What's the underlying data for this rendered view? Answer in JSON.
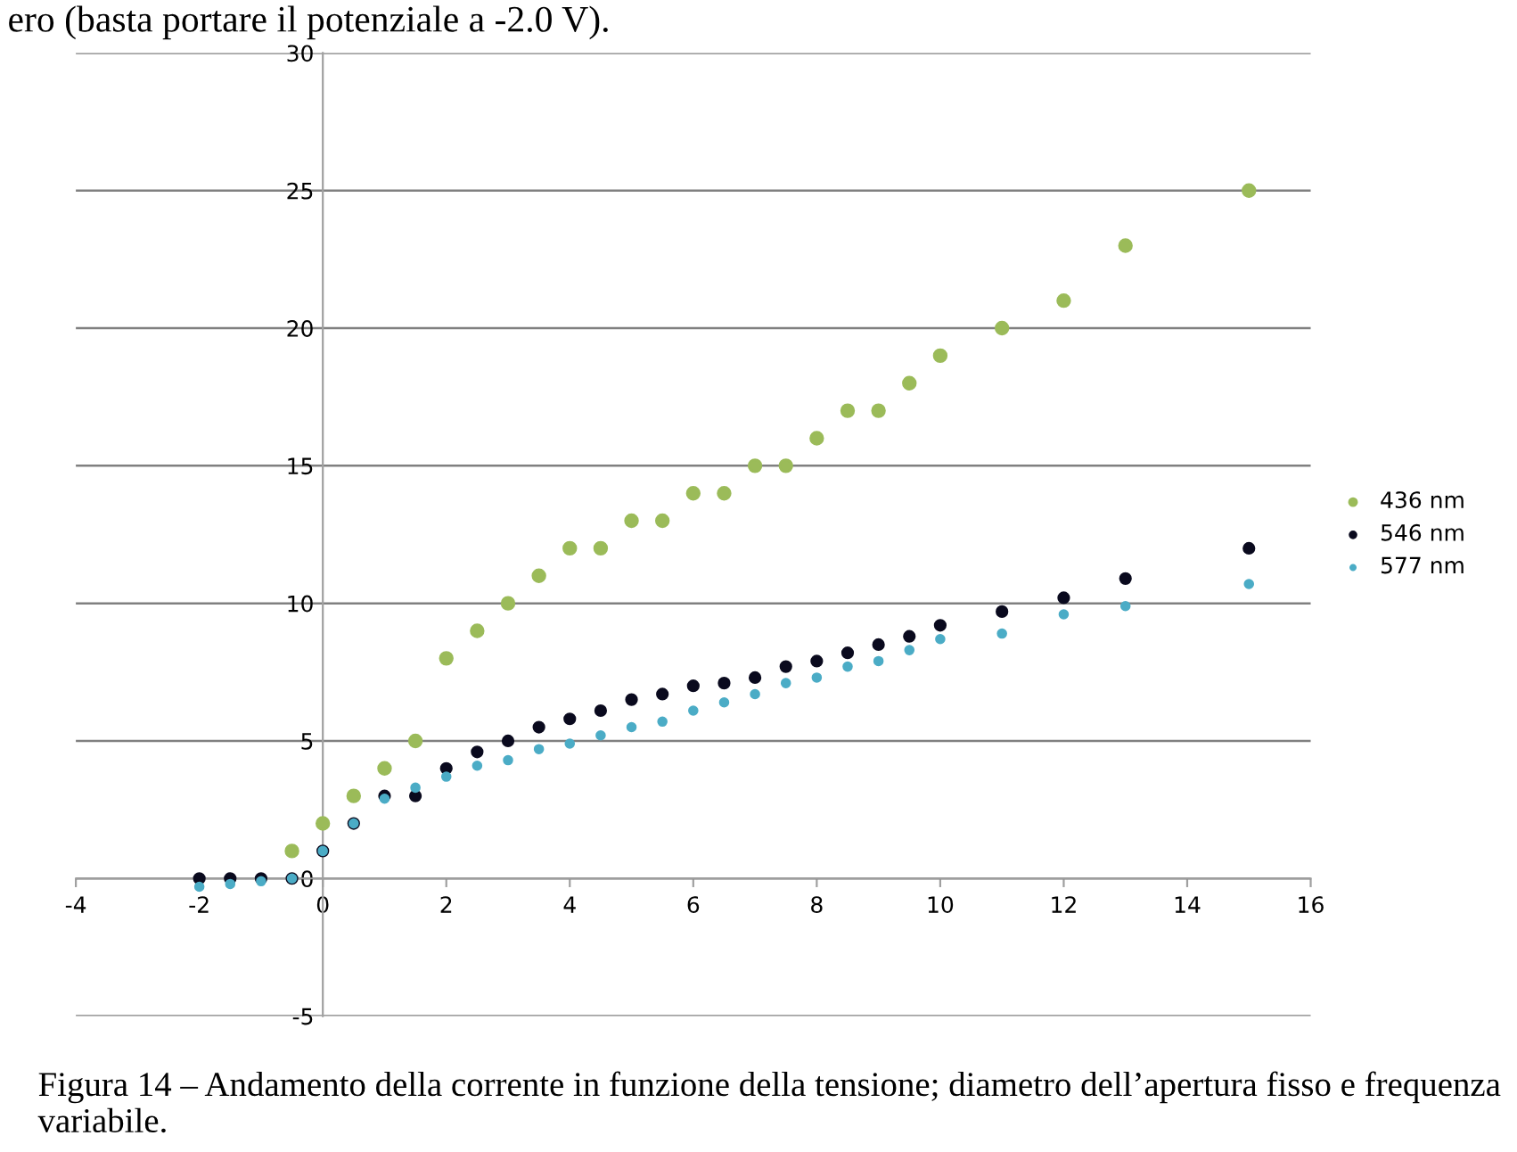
{
  "chart_data": {
    "type": "scatter",
    "xlim": [
      -4,
      16
    ],
    "xticks": [
      -4,
      -2,
      0,
      2,
      4,
      6,
      8,
      10,
      12,
      14,
      16
    ],
    "ylim": [
      -5,
      30
    ],
    "yticks": [
      -5,
      0,
      5,
      10,
      15,
      20,
      25,
      30
    ],
    "grid": "y",
    "legend": "right",
    "marker": "circle",
    "annotations": [
      "ero (basta portare il potenziale a -2.0 V).",
      "Figura 14 – Andamento della corrente in funzione della tensione; diametro dell’apertura fisso e frequenza variabile."
    ],
    "series": [
      {
        "name": "436 nm",
        "color": "#9bbb59",
        "x": [
          -0.5,
          0,
          0.5,
          1,
          1.5,
          2,
          2.5,
          3,
          3.5,
          4,
          4.5,
          5,
          5.5,
          6,
          6.5,
          7,
          7.5,
          8,
          8.5,
          9,
          9.5,
          10,
          11,
          12,
          13,
          15
        ],
        "values": [
          1,
          2,
          3,
          4,
          5,
          8,
          9,
          10,
          11,
          12,
          12,
          13,
          13,
          14,
          14,
          15,
          15,
          16,
          17,
          17,
          18,
          19,
          20,
          21,
          23,
          25
        ]
      },
      {
        "name": "546 nm",
        "color": "#0a0a1e",
        "x": [
          -2,
          -1.5,
          -1,
          -0.5,
          0,
          0.5,
          1,
          1.5,
          2,
          2.5,
          3,
          3.5,
          4,
          4.5,
          5,
          5.5,
          6,
          6.5,
          7,
          7.5,
          8,
          8.5,
          9,
          9.5,
          10,
          11,
          12,
          13,
          15
        ],
        "values": [
          0,
          0,
          0,
          0,
          1,
          2,
          3,
          3,
          4,
          4.6,
          5,
          5.5,
          5.8,
          6.1,
          6.5,
          6.7,
          7,
          7.1,
          7.3,
          7.7,
          7.9,
          8.2,
          8.5,
          8.8,
          9.2,
          9.7,
          10.2,
          10.9,
          12
        ]
      },
      {
        "name": "577 nm",
        "color": "#4bacc6",
        "x": [
          -2,
          -1.5,
          -1,
          -0.5,
          0,
          0.5,
          1,
          1.5,
          2,
          2.5,
          3,
          3.5,
          4,
          4.5,
          5,
          5.5,
          6,
          6.5,
          7,
          7.5,
          8,
          8.5,
          9,
          9.5,
          10,
          11,
          12,
          13,
          15
        ],
        "values": [
          -0.3,
          -0.2,
          -0.1,
          0,
          1,
          2,
          2.9,
          3.3,
          3.7,
          4.1,
          4.3,
          4.7,
          4.9,
          5.2,
          5.5,
          5.7,
          6.1,
          6.4,
          6.7,
          7.1,
          7.3,
          7.7,
          7.9,
          8.3,
          8.7,
          8.9,
          9.6,
          9.9,
          10.7
        ]
      }
    ]
  }
}
